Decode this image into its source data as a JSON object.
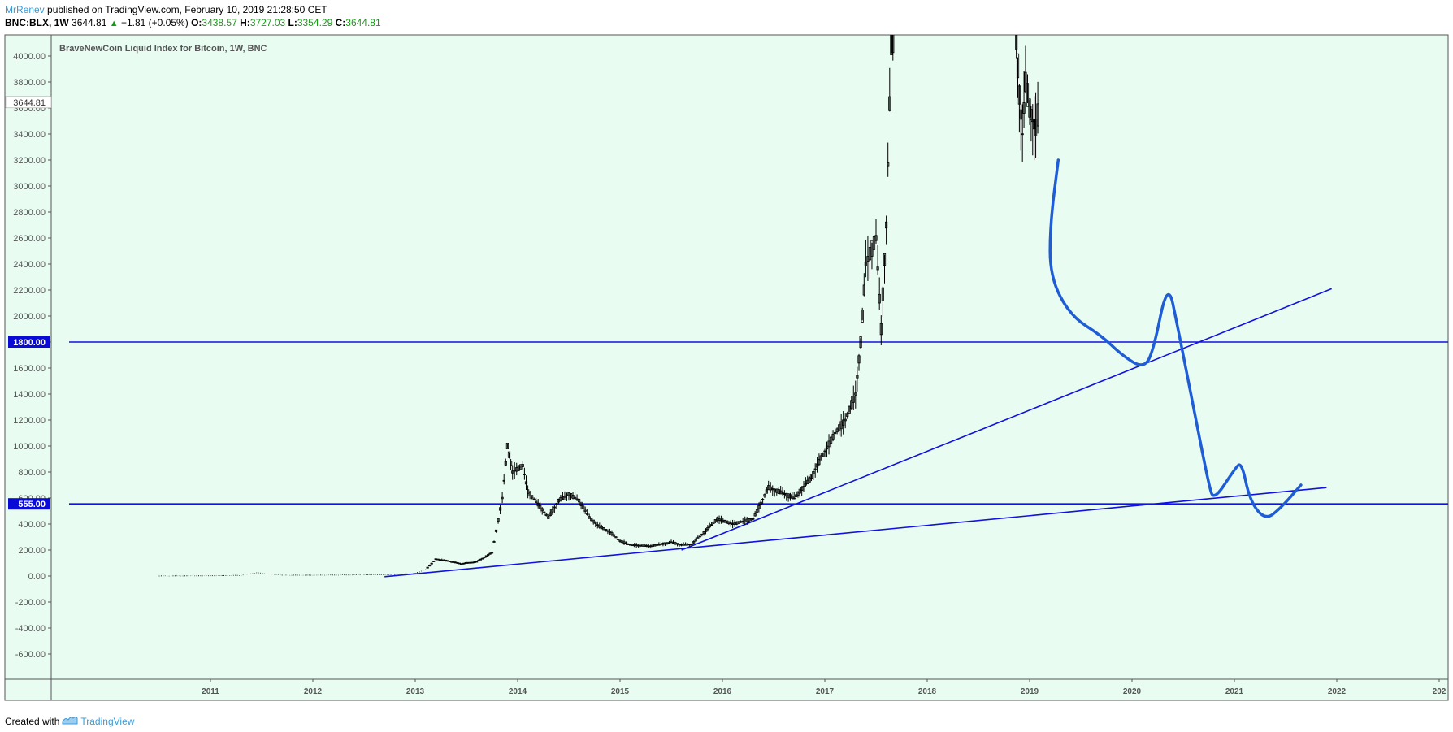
{
  "header": {
    "author": "MrRenev",
    "published_text": "published on TradingView.com, February 10, 2019 21:28:50 CET",
    "symbol": "BNC:BLX, 1W",
    "last": "3644.81",
    "arrow": "▲",
    "change": "+1.81 (+0.05%)",
    "o_label": "O:",
    "o_val": "3438.57",
    "h_label": "H:",
    "h_val": "3727.03",
    "l_label": "L:",
    "l_val": "3354.29",
    "c_label": "C:",
    "c_val": "3644.81"
  },
  "footer": {
    "created_with": "Created with",
    "brand": "TradingView"
  },
  "colors": {
    "background": "#e8fcf2",
    "candles": "#000000",
    "trendlines": "#1111e0",
    "drawing": "#1e5dd6",
    "label_bg": "#0a0ad6"
  },
  "chart_data": {
    "type": "candlestick",
    "title": "BraveNewCoin Liquid Index for Bitcoin, 1W, BNC",
    "ylim": [
      -800,
      4150
    ],
    "y_ticks": [
      "4000.00",
      "3800.00",
      "3600.00",
      "3400.00",
      "3200.00",
      "3000.00",
      "2800.00",
      "2600.00",
      "2400.00",
      "2200.00",
      "2000.00",
      "1800.00",
      "1600.00",
      "1400.00",
      "1200.00",
      "1000.00",
      "800.00",
      "600.00",
      "400.00",
      "200.00",
      "0.00",
      "-200.00",
      "-400.00",
      "-600.00"
    ],
    "x_ticks": [
      "2011",
      "2012",
      "2013",
      "2014",
      "2015",
      "2016",
      "2017",
      "2018",
      "2019",
      "2020",
      "2021",
      "2022",
      "202"
    ],
    "last_price_label": "3644.81",
    "horizontal_levels": [
      {
        "label": "1800.00",
        "value": 1800
      },
      {
        "label": "555.00",
        "value": 555
      }
    ],
    "trendlines": [
      {
        "from": [
          2012.7,
          -5
        ],
        "to": [
          2021.9,
          680
        ]
      },
      {
        "from": [
          2015.6,
          200
        ],
        "to": [
          2021.95,
          2210
        ]
      }
    ],
    "price_path": [
      [
        2010.5,
        0
      ],
      [
        2011.0,
        1
      ],
      [
        2011.3,
        5
      ],
      [
        2011.45,
        25
      ],
      [
        2011.7,
        6
      ],
      [
        2012.0,
        6
      ],
      [
        2012.5,
        8
      ],
      [
        2012.8,
        11
      ],
      [
        2013.0,
        20
      ],
      [
        2013.1,
        50
      ],
      [
        2013.2,
        130
      ],
      [
        2013.3,
        120
      ],
      [
        2013.45,
        95
      ],
      [
        2013.6,
        110
      ],
      [
        2013.75,
        180
      ],
      [
        2013.85,
        600
      ],
      [
        2013.9,
        1000
      ],
      [
        2013.95,
        800
      ],
      [
        2014.05,
        850
      ],
      [
        2014.1,
        650
      ],
      [
        2014.2,
        550
      ],
      [
        2014.3,
        450
      ],
      [
        2014.4,
        580
      ],
      [
        2014.5,
        630
      ],
      [
        2014.6,
        580
      ],
      [
        2014.7,
        450
      ],
      [
        2014.8,
        380
      ],
      [
        2014.9,
        340
      ],
      [
        2015.0,
        270
      ],
      [
        2015.1,
        240
      ],
      [
        2015.3,
        230
      ],
      [
        2015.5,
        260
      ],
      [
        2015.6,
        240
      ],
      [
        2015.7,
        245
      ],
      [
        2015.8,
        320
      ],
      [
        2015.95,
        440
      ],
      [
        2016.1,
        400
      ],
      [
        2016.3,
        440
      ],
      [
        2016.45,
        680
      ],
      [
        2016.55,
        650
      ],
      [
        2016.7,
        600
      ],
      [
        2016.85,
        740
      ],
      [
        2017.0,
        960
      ],
      [
        2017.1,
        1100
      ],
      [
        2017.2,
        1200
      ],
      [
        2017.3,
        1400
      ],
      [
        2017.35,
        1800
      ],
      [
        2017.4,
        2400
      ],
      [
        2017.5,
        2600
      ],
      [
        2017.55,
        1900
      ],
      [
        2017.6,
        2700
      ],
      [
        2017.65,
        4100
      ],
      [
        2017.68,
        4150
      ]
    ],
    "price_path_2": [
      [
        2018.87,
        4150
      ],
      [
        2018.9,
        3700
      ],
      [
        2018.93,
        3400
      ],
      [
        2018.96,
        3800
      ],
      [
        2019.0,
        3600
      ],
      [
        2019.03,
        3500
      ],
      [
        2019.06,
        3450
      ],
      [
        2019.1,
        3644
      ]
    ],
    "projection": [
      [
        2019.28,
        3200
      ],
      [
        2019.2,
        2700
      ],
      [
        2019.2,
        2300
      ],
      [
        2019.4,
        2000
      ],
      [
        2019.7,
        1850
      ],
      [
        2019.9,
        1700
      ],
      [
        2020.1,
        1600
      ],
      [
        2020.2,
        1700
      ],
      [
        2020.35,
        2280
      ],
      [
        2020.45,
        1900
      ],
      [
        2020.6,
        1300
      ],
      [
        2020.75,
        700
      ],
      [
        2020.8,
        580
      ],
      [
        2021.0,
        820
      ],
      [
        2021.07,
        880
      ],
      [
        2021.15,
        580
      ],
      [
        2021.3,
        430
      ],
      [
        2021.45,
        520
      ],
      [
        2021.65,
        700
      ]
    ]
  }
}
